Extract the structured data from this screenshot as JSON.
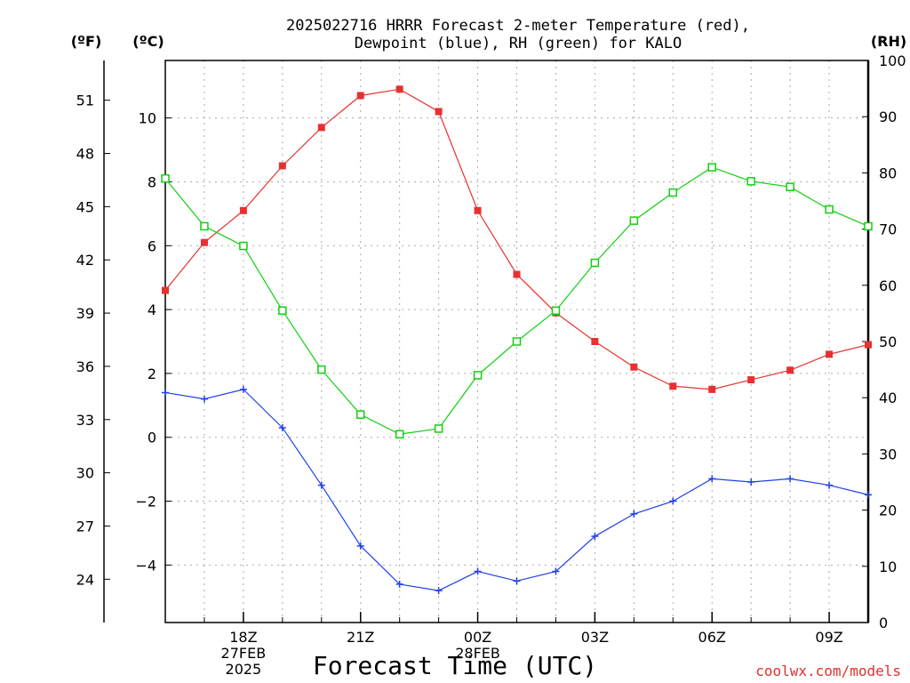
{
  "title_line1": "2025022716 HRRR Forecast 2-meter Temperature (red),",
  "title_line2": "Dewpoint (blue), RH (green) for KALO",
  "units": {
    "fahrenheit": "(ºF)",
    "celsius": "(ºC)",
    "rh": "(RH)"
  },
  "xlabel": "Forecast Time (UTC)",
  "credit": "coolwx.com/models",
  "colors": {
    "temperature": "#e83030",
    "dewpoint": "#2040e8",
    "rh": "#10d010",
    "grid": "#aaaaaa",
    "credit": "#e03030"
  },
  "chart_data": {
    "type": "line",
    "x": [
      "16Z",
      "17Z",
      "18Z",
      "19Z",
      "20Z",
      "21Z",
      "22Z",
      "23Z",
      "00Z",
      "01Z",
      "02Z",
      "03Z",
      "04Z",
      "05Z",
      "06Z",
      "07Z",
      "08Z",
      "09Z",
      "10Z"
    ],
    "x_tick_labels": [
      {
        "x": "18Z",
        "lines": [
          "18Z",
          "27FEB",
          "2025"
        ]
      },
      {
        "x": "21Z",
        "lines": [
          "21Z"
        ]
      },
      {
        "x": "00Z",
        "lines": [
          "00Z",
          "28FEB"
        ]
      },
      {
        "x": "03Z",
        "lines": [
          "03Z"
        ]
      },
      {
        "x": "06Z",
        "lines": [
          "06Z"
        ]
      },
      {
        "x": "09Z",
        "lines": [
          "09Z"
        ]
      }
    ],
    "celsius_axis": {
      "ticks": [
        -4,
        -2,
        0,
        2,
        4,
        6,
        8,
        10
      ],
      "range": [
        -5.8,
        11.8
      ]
    },
    "fahrenheit_axis": {
      "ticks": [
        24,
        27,
        30,
        33,
        36,
        39,
        42,
        45,
        48,
        51
      ]
    },
    "rh_axis": {
      "ticks": [
        0,
        10,
        20,
        30,
        40,
        50,
        60,
        70,
        80,
        90,
        100
      ],
      "range": [
        0,
        100
      ]
    },
    "series": [
      {
        "axis": "celsius",
        "color": "#e83030",
        "marker": "filled-square",
        "values": [
          4.6,
          6.1,
          7.1,
          8.5,
          9.7,
          10.7,
          10.9,
          10.2,
          7.1,
          5.1,
          3.9,
          3.0,
          2.2,
          1.6,
          1.5,
          1.8,
          2.1,
          2.6,
          2.9
        ]
      },
      {
        "axis": "celsius",
        "color": "#2040e8",
        "marker": "plus",
        "values": [
          1.4,
          1.2,
          1.5,
          0.3,
          -1.5,
          -3.4,
          -4.6,
          -4.8,
          -4.2,
          -4.5,
          -4.2,
          -3.1,
          -2.4,
          -2.0,
          -1.3,
          -1.4,
          -1.3,
          -1.5,
          -1.8
        ]
      },
      {
        "axis": "rh",
        "color": "#10d010",
        "marker": "open-square",
        "values": [
          79,
          70.5,
          67,
          55.5,
          45,
          37,
          33.5,
          34.5,
          44,
          50,
          55.5,
          64,
          71.5,
          76.5,
          81,
          78.5,
          77.5,
          73.5,
          70.5
        ]
      }
    ],
    "grid": true
  }
}
